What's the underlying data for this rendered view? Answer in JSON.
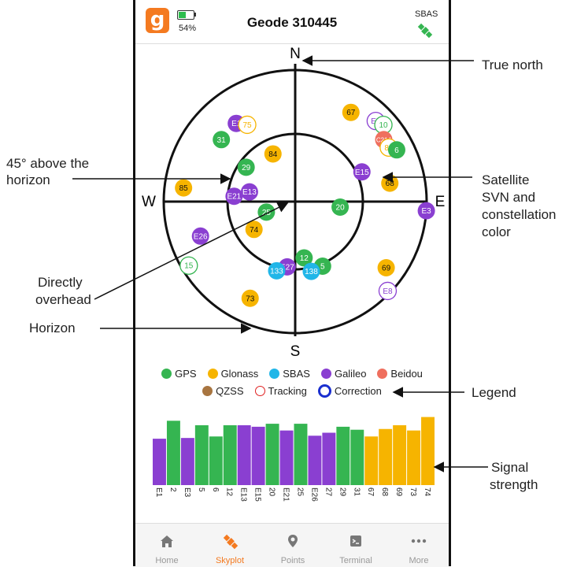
{
  "app": {
    "title": "Geode 310445",
    "battery_pct": "54%",
    "battery_level": 0.54,
    "sbas_label": "SBAS",
    "logo_letter": "g",
    "sbas_icon": "satellite-icon",
    "accent": "#f47a20"
  },
  "skyplot": {
    "north": "N",
    "south": "S",
    "east": "E",
    "west": "W",
    "colors": {
      "GPS": "#35b551",
      "Glonass": "#f6b400",
      "SBAS": "#21b6e8",
      "Galileo": "#8a3fd1",
      "Beidou": "#ef6f5e",
      "QZSS": "#a87540"
    },
    "satellites": [
      {
        "svn": "67",
        "system": "Glonass",
        "az": 32,
        "el": 18,
        "mode": "filled"
      },
      {
        "svn": "E5",
        "system": "Galileo",
        "az": 45,
        "el": 12,
        "mode": "ring"
      },
      {
        "svn": "10",
        "system": "GPS",
        "az": 49,
        "el": 10,
        "mode": "ring"
      },
      {
        "svn": "C214",
        "system": "Beidou",
        "az": 55,
        "el": 16,
        "mode": "filled"
      },
      {
        "svn": "83",
        "system": "Glonass",
        "az": 60,
        "el": 16,
        "mode": "ring"
      },
      {
        "svn": "6",
        "system": "GPS",
        "az": 63,
        "el": 12,
        "mode": "filled"
      },
      {
        "svn": "E15",
        "system": "Galileo",
        "az": 66,
        "el": 40,
        "mode": "filled"
      },
      {
        "svn": "68",
        "system": "Glonass",
        "az": 79,
        "el": 24,
        "mode": "filled"
      },
      {
        "svn": "E3",
        "system": "Galileo",
        "az": 94,
        "el": 0,
        "mode": "filled"
      },
      {
        "svn": "20",
        "system": "GPS",
        "az": 97,
        "el": 59,
        "mode": "filled"
      },
      {
        "svn": "69",
        "system": "Glonass",
        "az": 126,
        "el": 13,
        "mode": "filled"
      },
      {
        "svn": "E8",
        "system": "Galileo",
        "az": 134,
        "el": 2,
        "mode": "ring"
      },
      {
        "svn": "12",
        "system": "GPS",
        "az": 171,
        "el": 51,
        "mode": "filled"
      },
      {
        "svn": "5",
        "system": "GPS",
        "az": 157,
        "el": 42,
        "mode": "filled"
      },
      {
        "svn": "138",
        "system": "SBAS",
        "az": 167,
        "el": 41,
        "mode": "filled"
      },
      {
        "svn": "E27",
        "system": "Galileo",
        "az": 187,
        "el": 45,
        "mode": "filled"
      },
      {
        "svn": "133",
        "system": "SBAS",
        "az": 195,
        "el": 41,
        "mode": "filled"
      },
      {
        "svn": "73",
        "system": "Glonass",
        "az": 205,
        "el": 17,
        "mode": "filled"
      },
      {
        "svn": "15",
        "system": "GPS",
        "az": 239,
        "el": 5,
        "mode": "ring"
      },
      {
        "svn": "E26",
        "system": "Galileo",
        "az": 250,
        "el": 21,
        "mode": "filled"
      },
      {
        "svn": "74",
        "system": "Glonass",
        "az": 236,
        "el": 56,
        "mode": "filled"
      },
      {
        "svn": "25",
        "system": "GPS",
        "az": 250,
        "el": 69,
        "mode": "filled"
      },
      {
        "svn": "85",
        "system": "Glonass",
        "az": 277,
        "el": 13,
        "mode": "filled"
      },
      {
        "svn": "E21",
        "system": "Galileo",
        "az": 275,
        "el": 48,
        "mode": "filled"
      },
      {
        "svn": "E13",
        "system": "Galileo",
        "az": 282,
        "el": 58,
        "mode": "filled"
      },
      {
        "svn": "29",
        "system": "GPS",
        "az": 305,
        "el": 49,
        "mode": "filled"
      },
      {
        "svn": "84",
        "system": "Glonass",
        "az": 335,
        "el": 54,
        "mode": "filled"
      },
      {
        "svn": "31",
        "system": "GPS",
        "az": 310,
        "el": 24,
        "mode": "filled"
      },
      {
        "svn": "E1",
        "system": "Galileo",
        "az": 323,
        "el": 23,
        "mode": "filled"
      },
      {
        "svn": "75",
        "system": "Glonass",
        "az": 328,
        "el": 28,
        "mode": "ring"
      }
    ]
  },
  "legend": {
    "row1": [
      {
        "label": "GPS",
        "color": "#35b551",
        "style": "dot"
      },
      {
        "label": "Glonass",
        "color": "#f6b400",
        "style": "dot"
      },
      {
        "label": "SBAS",
        "color": "#21b6e8",
        "style": "dot"
      },
      {
        "label": "Galileo",
        "color": "#8a3fd1",
        "style": "dot"
      },
      {
        "label": "Beidou",
        "color": "#ef6f5e",
        "style": "dot"
      }
    ],
    "row2": [
      {
        "label": "QZSS",
        "color": "#a87540",
        "style": "dot"
      },
      {
        "label": "Tracking",
        "color": "#e02020",
        "style": "ring"
      },
      {
        "label": "Correction",
        "color": "#1a2fcf",
        "style": "ring-bold"
      }
    ]
  },
  "chart_data": {
    "type": "bar",
    "ylim": [
      0,
      100
    ],
    "categories": [
      "E1",
      "2",
      "E3",
      "5",
      "6",
      "12",
      "E13",
      "E15",
      "20",
      "E21",
      "25",
      "E26",
      "27",
      "29",
      "31",
      "67",
      "68",
      "69",
      "73",
      "74"
    ],
    "values": [
      62,
      86,
      63,
      80,
      65,
      80,
      80,
      78,
      82,
      73,
      82,
      66,
      70,
      78,
      74,
      65,
      75,
      80,
      73,
      91
    ],
    "systems": [
      "Galileo",
      "GPS",
      "Galileo",
      "GPS",
      "GPS",
      "GPS",
      "Galileo",
      "Galileo",
      "GPS",
      "Galileo",
      "GPS",
      "Galileo",
      "Galileo",
      "GPS",
      "GPS",
      "Glonass",
      "Glonass",
      "Glonass",
      "Glonass",
      "Glonass"
    ]
  },
  "tabs": [
    {
      "label": "Home",
      "icon": "home-icon",
      "active": false
    },
    {
      "label": "Skyplot",
      "icon": "satellite-icon",
      "active": true
    },
    {
      "label": "Points",
      "icon": "map-pin-icon",
      "active": false
    },
    {
      "label": "Terminal",
      "icon": "terminal-icon",
      "active": false
    },
    {
      "label": "More",
      "icon": "more-dots-icon",
      "active": false
    }
  ],
  "annotations": {
    "true_north": "True north",
    "above_45_line1": "45° above the",
    "above_45_line2": "horizon",
    "sat_line1": "Satellite",
    "sat_line2": "SVN and",
    "sat_line3": "constellation",
    "sat_line4": "color",
    "overhead_line1": "Directly",
    "overhead_line2": "overhead",
    "horizon": "Horizon",
    "legend": "Legend",
    "signal_line1": "Signal",
    "signal_line2": "strength"
  }
}
